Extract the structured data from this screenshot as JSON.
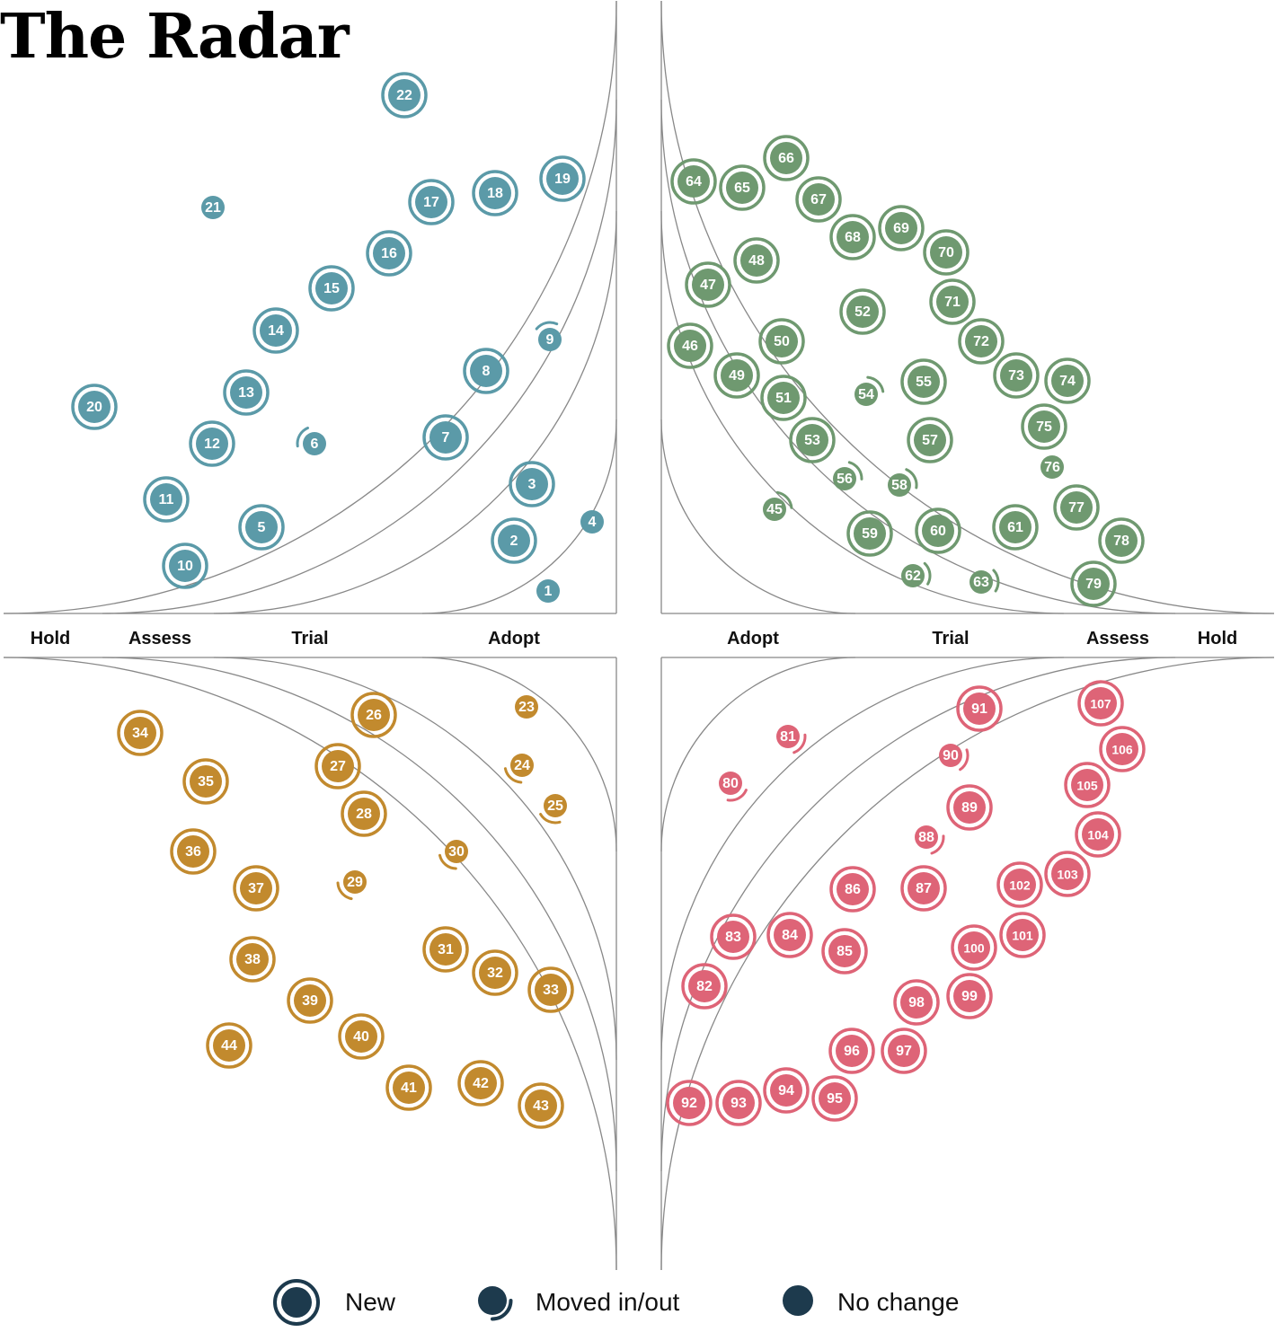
{
  "title": "The Radar",
  "rings": [
    "Adopt",
    "Trial",
    "Assess",
    "Hold"
  ],
  "colors": {
    "quadrant_top_left": "#5b9aa8",
    "quadrant_top_right": "#6f9970",
    "quadrant_bottom_left": "#c28a2e",
    "quadrant_bottom_right": "#de6477",
    "legend": "#1d3a4d",
    "grid": "#888888"
  },
  "legend": {
    "new": "New",
    "moved": "Moved in/out",
    "no_change": "No change"
  },
  "quadrants": [
    {
      "id": "top-left",
      "color_key": "quadrant_top_left",
      "blips": [
        {
          "n": 1,
          "ring": "Adopt",
          "status": "none"
        },
        {
          "n": 2,
          "ring": "Adopt",
          "status": "new"
        },
        {
          "n": 3,
          "ring": "Adopt",
          "status": "new"
        },
        {
          "n": 4,
          "ring": "Adopt",
          "status": "none"
        },
        {
          "n": 5,
          "ring": "Trial",
          "status": "new"
        },
        {
          "n": 6,
          "ring": "Trial",
          "status": "moved"
        },
        {
          "n": 7,
          "ring": "Trial",
          "status": "new"
        },
        {
          "n": 8,
          "ring": "Trial",
          "status": "new"
        },
        {
          "n": 9,
          "ring": "Trial",
          "status": "moved"
        },
        {
          "n": 10,
          "ring": "Assess",
          "status": "new"
        },
        {
          "n": 11,
          "ring": "Assess",
          "status": "new"
        },
        {
          "n": 12,
          "ring": "Assess",
          "status": "new"
        },
        {
          "n": 13,
          "ring": "Assess",
          "status": "new"
        },
        {
          "n": 14,
          "ring": "Assess",
          "status": "new"
        },
        {
          "n": 15,
          "ring": "Assess",
          "status": "new"
        },
        {
          "n": 16,
          "ring": "Assess",
          "status": "new"
        },
        {
          "n": 17,
          "ring": "Assess",
          "status": "new"
        },
        {
          "n": 18,
          "ring": "Assess",
          "status": "new"
        },
        {
          "n": 19,
          "ring": "Assess",
          "status": "new"
        },
        {
          "n": 20,
          "ring": "Hold",
          "status": "new"
        },
        {
          "n": 21,
          "ring": "Hold",
          "status": "none"
        },
        {
          "n": 22,
          "ring": "Hold",
          "status": "new"
        }
      ]
    },
    {
      "id": "bottom-left",
      "color_key": "quadrant_bottom_left",
      "blips": [
        {
          "n": 23,
          "ring": "Adopt",
          "status": "none"
        },
        {
          "n": 24,
          "ring": "Adopt",
          "status": "moved"
        },
        {
          "n": 25,
          "ring": "Adopt",
          "status": "moved"
        },
        {
          "n": 26,
          "ring": "Trial",
          "status": "new"
        },
        {
          "n": 27,
          "ring": "Trial",
          "status": "new"
        },
        {
          "n": 28,
          "ring": "Trial",
          "status": "new"
        },
        {
          "n": 29,
          "ring": "Trial",
          "status": "moved"
        },
        {
          "n": 30,
          "ring": "Trial",
          "status": "moved"
        },
        {
          "n": 31,
          "ring": "Trial",
          "status": "new"
        },
        {
          "n": 32,
          "ring": "Trial",
          "status": "new"
        },
        {
          "n": 33,
          "ring": "Trial",
          "status": "new"
        },
        {
          "n": 34,
          "ring": "Assess",
          "status": "new"
        },
        {
          "n": 35,
          "ring": "Assess",
          "status": "new"
        },
        {
          "n": 36,
          "ring": "Assess",
          "status": "new"
        },
        {
          "n": 37,
          "ring": "Assess",
          "status": "new"
        },
        {
          "n": 38,
          "ring": "Assess",
          "status": "new"
        },
        {
          "n": 39,
          "ring": "Assess",
          "status": "new"
        },
        {
          "n": 40,
          "ring": "Assess",
          "status": "new"
        },
        {
          "n": 41,
          "ring": "Assess",
          "status": "new"
        },
        {
          "n": 42,
          "ring": "Assess",
          "status": "new"
        },
        {
          "n": 43,
          "ring": "Assess",
          "status": "new"
        },
        {
          "n": 44,
          "ring": "Hold",
          "status": "new"
        }
      ]
    },
    {
      "id": "top-right",
      "color_key": "quadrant_top_right",
      "blips": [
        {
          "n": 45,
          "ring": "Adopt",
          "status": "moved"
        },
        {
          "n": 46,
          "ring": "Trial",
          "status": "new"
        },
        {
          "n": 47,
          "ring": "Trial",
          "status": "new"
        },
        {
          "n": 48,
          "ring": "Trial",
          "status": "new"
        },
        {
          "n": 49,
          "ring": "Trial",
          "status": "new"
        },
        {
          "n": 50,
          "ring": "Trial",
          "status": "new"
        },
        {
          "n": 51,
          "ring": "Trial",
          "status": "new"
        },
        {
          "n": 52,
          "ring": "Trial",
          "status": "new"
        },
        {
          "n": 53,
          "ring": "Trial",
          "status": "new"
        },
        {
          "n": 54,
          "ring": "Trial",
          "status": "moved"
        },
        {
          "n": 55,
          "ring": "Trial",
          "status": "new"
        },
        {
          "n": 56,
          "ring": "Trial",
          "status": "moved"
        },
        {
          "n": 57,
          "ring": "Trial",
          "status": "new"
        },
        {
          "n": 58,
          "ring": "Trial",
          "status": "moved"
        },
        {
          "n": 59,
          "ring": "Trial",
          "status": "new"
        },
        {
          "n": 60,
          "ring": "Trial",
          "status": "new"
        },
        {
          "n": 61,
          "ring": "Trial",
          "status": "new"
        },
        {
          "n": 62,
          "ring": "Trial",
          "status": "moved"
        },
        {
          "n": 63,
          "ring": "Trial",
          "status": "moved"
        },
        {
          "n": 64,
          "ring": "Assess",
          "status": "new"
        },
        {
          "n": 65,
          "ring": "Assess",
          "status": "new"
        },
        {
          "n": 66,
          "ring": "Assess",
          "status": "new"
        },
        {
          "n": 67,
          "ring": "Assess",
          "status": "new"
        },
        {
          "n": 68,
          "ring": "Assess",
          "status": "new"
        },
        {
          "n": 69,
          "ring": "Assess",
          "status": "new"
        },
        {
          "n": 70,
          "ring": "Assess",
          "status": "new"
        },
        {
          "n": 71,
          "ring": "Assess",
          "status": "new"
        },
        {
          "n": 72,
          "ring": "Assess",
          "status": "new"
        },
        {
          "n": 73,
          "ring": "Assess",
          "status": "new"
        },
        {
          "n": 74,
          "ring": "Assess",
          "status": "new"
        },
        {
          "n": 75,
          "ring": "Assess",
          "status": "new"
        },
        {
          "n": 76,
          "ring": "Assess",
          "status": "none"
        },
        {
          "n": 77,
          "ring": "Assess",
          "status": "new"
        },
        {
          "n": 78,
          "ring": "Assess",
          "status": "new"
        },
        {
          "n": 79,
          "ring": "Assess",
          "status": "new"
        }
      ]
    },
    {
      "id": "bottom-right",
      "color_key": "quadrant_bottom_right",
      "blips": [
        {
          "n": 80,
          "ring": "Adopt",
          "status": "moved"
        },
        {
          "n": 81,
          "ring": "Adopt",
          "status": "moved"
        },
        {
          "n": 82,
          "ring": "Trial",
          "status": "new"
        },
        {
          "n": 83,
          "ring": "Trial",
          "status": "new"
        },
        {
          "n": 84,
          "ring": "Trial",
          "status": "new"
        },
        {
          "n": 85,
          "ring": "Trial",
          "status": "new"
        },
        {
          "n": 86,
          "ring": "Trial",
          "status": "new"
        },
        {
          "n": 87,
          "ring": "Trial",
          "status": "new"
        },
        {
          "n": 88,
          "ring": "Trial",
          "status": "moved"
        },
        {
          "n": 89,
          "ring": "Trial",
          "status": "new"
        },
        {
          "n": 90,
          "ring": "Trial",
          "status": "moved"
        },
        {
          "n": 91,
          "ring": "Trial",
          "status": "new"
        },
        {
          "n": 92,
          "ring": "Assess",
          "status": "new"
        },
        {
          "n": 93,
          "ring": "Assess",
          "status": "new"
        },
        {
          "n": 94,
          "ring": "Assess",
          "status": "new"
        },
        {
          "n": 95,
          "ring": "Assess",
          "status": "new"
        },
        {
          "n": 96,
          "ring": "Assess",
          "status": "new"
        },
        {
          "n": 97,
          "ring": "Assess",
          "status": "new"
        },
        {
          "n": 98,
          "ring": "Assess",
          "status": "new"
        },
        {
          "n": 99,
          "ring": "Assess",
          "status": "new"
        },
        {
          "n": 100,
          "ring": "Assess",
          "status": "new"
        },
        {
          "n": 101,
          "ring": "Assess",
          "status": "new"
        },
        {
          "n": 102,
          "ring": "Assess",
          "status": "new"
        },
        {
          "n": 103,
          "ring": "Assess",
          "status": "new"
        },
        {
          "n": 104,
          "ring": "Assess",
          "status": "new"
        },
        {
          "n": 105,
          "ring": "Assess",
          "status": "new"
        },
        {
          "n": 106,
          "ring": "Assess",
          "status": "new"
        },
        {
          "n": 107,
          "ring": "Assess",
          "status": "new"
        }
      ]
    }
  ]
}
